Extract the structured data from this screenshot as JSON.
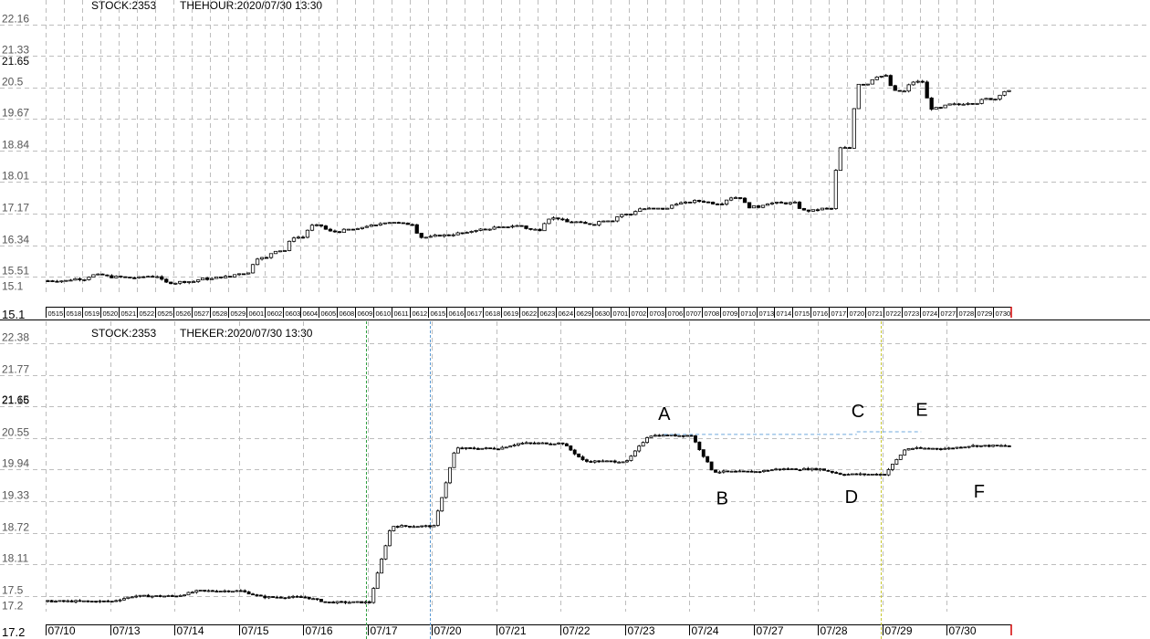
{
  "colors": {
    "background": "#ffffff",
    "grid": "#bdbdbd",
    "candle": "#000000",
    "separator": "#000000",
    "guide_green": "#2e9e3f",
    "guide_blue": "#5b9bd5",
    "guide_yellow": "#c8c832",
    "level_line": "#6fa8dc",
    "now_marker": "#d40000"
  },
  "chart_data": [
    {
      "type": "candlestick",
      "header": {
        "stock": "STOCK:2353",
        "period": "THEHOUR:2020/07/30 13:30"
      },
      "ylim": [
        15.1,
        22.16
      ],
      "y_ticks": [
        "22.16",
        "21.33",
        "20.5",
        "19.67",
        "18.84",
        "18.01",
        "17.17",
        "16.34",
        "15.51",
        "15.1"
      ],
      "y_current_label": "21.65",
      "grid": true,
      "x_ticks": [
        "0515",
        "0518",
        "0519",
        "0520",
        "0521",
        "0522",
        "0525",
        "0526",
        "0527",
        "0528",
        "0529",
        "0601",
        "0602",
        "0603",
        "0604",
        "0605",
        "0608",
        "0609",
        "0610",
        "0611",
        "0612",
        "0615",
        "0616",
        "0617",
        "0618",
        "0619",
        "0622",
        "0623",
        "0624",
        "0629",
        "0630",
        "0701",
        "0702",
        "0703",
        "0706",
        "0707",
        "0708",
        "0709",
        "0710",
        "0713",
        "0714",
        "0715",
        "0716",
        "0717",
        "0720",
        "0721",
        "0722",
        "0723",
        "0724",
        "0727",
        "0728",
        "0729",
        "0730"
      ],
      "close_per_day": [
        15.4,
        15.45,
        15.55,
        15.5,
        15.48,
        15.52,
        15.35,
        15.38,
        15.45,
        15.5,
        15.6,
        16.0,
        16.2,
        16.55,
        16.85,
        16.7,
        16.75,
        16.85,
        16.95,
        16.9,
        16.55,
        16.6,
        16.65,
        16.75,
        16.8,
        16.85,
        16.75,
        17.05,
        16.95,
        16.9,
        17.0,
        17.15,
        17.3,
        17.3,
        17.45,
        17.5,
        17.45,
        17.6,
        17.35,
        17.45,
        17.45,
        17.25,
        17.3,
        18.9,
        20.6,
        20.8,
        20.4,
        20.65,
        19.95,
        20.05,
        20.1,
        20.2,
        20.4
      ]
    },
    {
      "type": "candlestick",
      "header": {
        "stock": "STOCK:2353",
        "period": "THEKER:2020/07/30 13:30"
      },
      "ylim": [
        17.2,
        22.38
      ],
      "y_ticks": [
        "22.38",
        "21.77",
        "21.16",
        "20.55",
        "19.94",
        "19.33",
        "18.72",
        "18.11",
        "17.5",
        "17.2"
      ],
      "y_current_label": "21.65",
      "grid": true,
      "x_ticks": [
        "07/10",
        "07/13",
        "07/14",
        "07/15",
        "07/16",
        "07/17",
        "07/20",
        "07/21",
        "07/22",
        "07/23",
        "07/24",
        "07/27",
        "07/28",
        "07/29",
        "07/30"
      ],
      "close_per_day": [
        17.4,
        17.5,
        17.6,
        17.48,
        17.38,
        18.85,
        20.35,
        20.45,
        20.1,
        20.6,
        19.9,
        19.95,
        19.85,
        20.35,
        20.4
      ],
      "annotations": [
        {
          "label": "A",
          "x": "07/23",
          "y": 20.62
        },
        {
          "label": "B",
          "x": "07/24",
          "y": 19.85
        },
        {
          "label": "C",
          "x": "07/28",
          "y": 20.67
        },
        {
          "label": "D",
          "x": "07/28",
          "y": 19.88
        },
        {
          "label": "E",
          "x": "07/29",
          "y": 20.7
        },
        {
          "label": "F",
          "x": "07/30",
          "y": 19.98
        }
      ],
      "levels": [
        {
          "from": "A",
          "to": "C",
          "y": 20.62
        },
        {
          "from": "C",
          "to": "E",
          "y": 20.67
        }
      ],
      "guide_lines": [
        {
          "at": "07/17",
          "color": "green"
        },
        {
          "at": "07/20",
          "color": "blue"
        },
        {
          "at": "07/29",
          "color": "yellow"
        }
      ]
    }
  ]
}
